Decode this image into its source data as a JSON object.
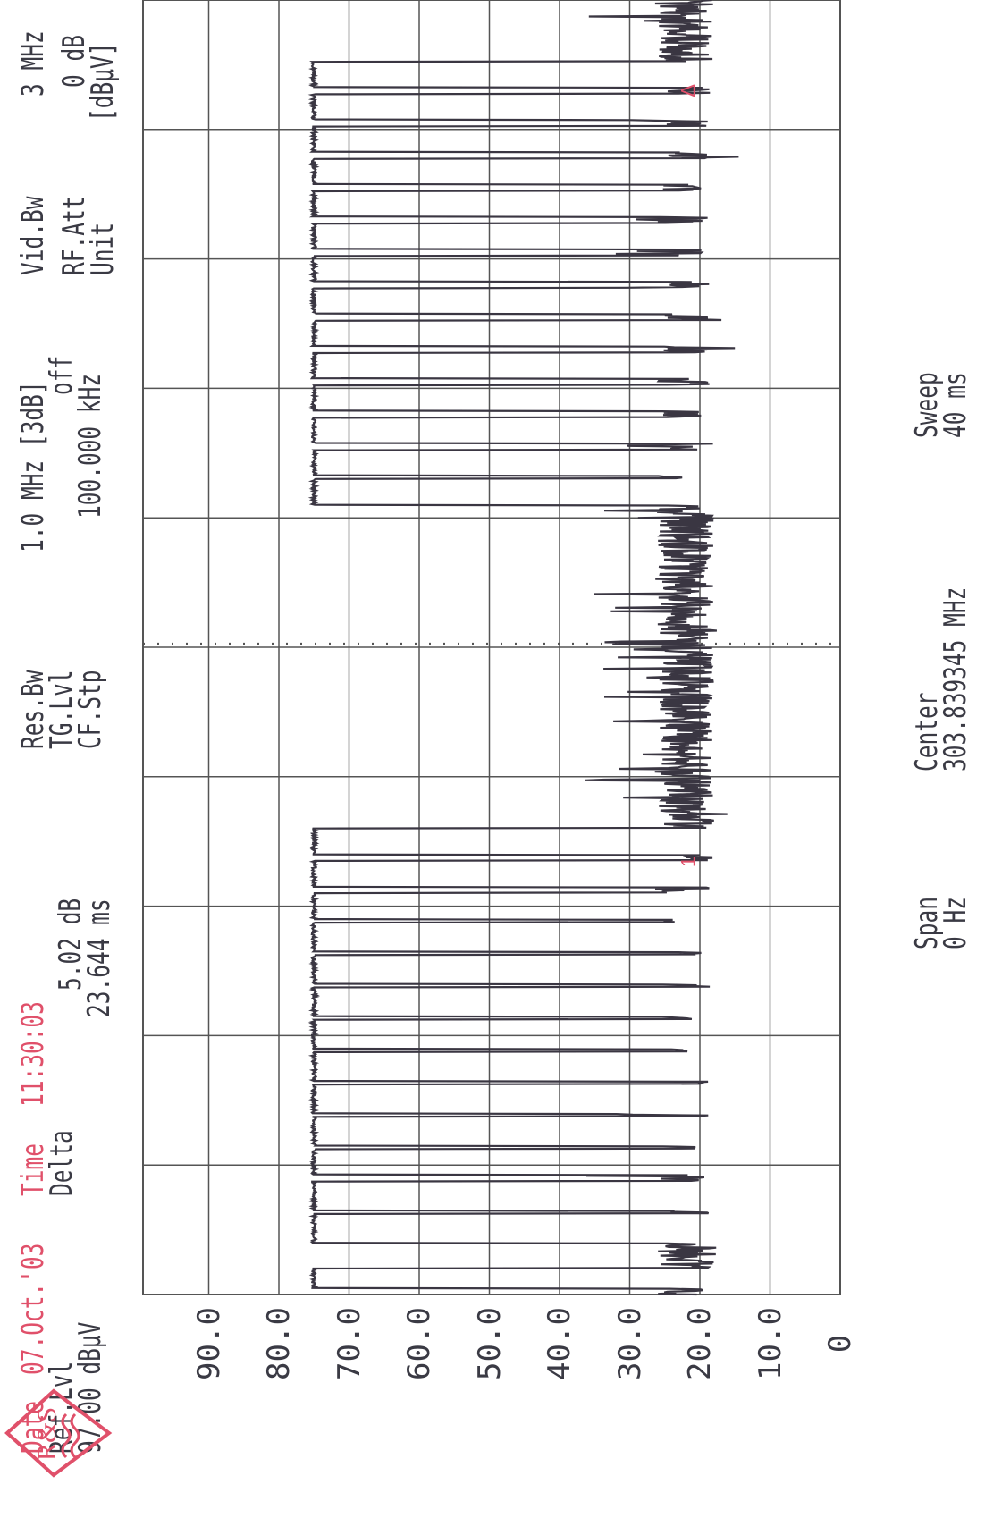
{
  "header": {
    "date_label": "Date",
    "date_value": "07.Oct.'03",
    "time_label": "Time",
    "time_value": "11:30:03",
    "ref_label": "Ref.Lvl",
    "ref_value": "97.00 dBµV",
    "delta_label": "Delta",
    "delta_db": "5.02 dB",
    "delta_ms": "23.644 ms",
    "res_bw_label": "Res.Bw",
    "res_bw_value": "1.0 MHz [3dB]",
    "tg_lvl_label": "TG.Lvl",
    "tg_lvl_value": "off",
    "cf_stp_label": "CF.Stp",
    "cf_stp_value": "100.000 kHz",
    "vid_bw_label": "Vid.Bw",
    "vid_bw_value": "3 MHz",
    "rf_att_label": "RF.Att",
    "rf_att_value": "0 dB",
    "unit_label": "Unit",
    "unit_value": "[dBµV]"
  },
  "footer": {
    "span_label": "Span",
    "span_value": "0 Hz",
    "center_label": "Center",
    "center_value": "303.839345 MHz",
    "sweep_label": "Sweep",
    "sweep_value": "40 ms"
  },
  "logo": {
    "text": "R&S",
    "color": "#e0506a"
  },
  "colors": {
    "trace": "#3a3642",
    "grid": "#555555",
    "accent": "#e0506a"
  },
  "chart_data": {
    "type": "line",
    "title": "",
    "xlabel": "",
    "ylabel": "",
    "xlim": [
      0,
      40
    ],
    "ylim": [
      0,
      97
    ],
    "y_ticks": [
      "90.0",
      "80.0",
      "70.0",
      "60.0",
      "50.0",
      "40.0",
      "30.0",
      "20.0",
      "10.0",
      "0"
    ],
    "grid": true,
    "x_unit": "ms",
    "y_unit": "dBµV",
    "noise_floor": 22,
    "pulse_high": 75,
    "pulse_trains": [
      {
        "name": "Burst 1",
        "pulses": [
          [
            0.2,
            0.8
          ],
          [
            1.6,
            2.5
          ],
          [
            2.6,
            3.5
          ],
          [
            3.7,
            4.5
          ],
          [
            4.6,
            5.5
          ],
          [
            5.6,
            6.5
          ],
          [
            6.6,
            7.5
          ],
          [
            7.6,
            8.5
          ],
          [
            8.6,
            9.5
          ],
          [
            9.6,
            10.5
          ],
          [
            10.6,
            11.5
          ],
          [
            11.6,
            12.4
          ],
          [
            12.6,
            13.4
          ],
          [
            13.6,
            14.4
          ]
        ]
      },
      {
        "name": "Burst 2",
        "pulses": [
          [
            24.4,
            25.2
          ],
          [
            25.3,
            26.1
          ],
          [
            26.3,
            27.1
          ],
          [
            27.3,
            28.1
          ],
          [
            28.3,
            29.1
          ],
          [
            29.3,
            30.1
          ],
          [
            30.3,
            31.1
          ],
          [
            31.3,
            32.1
          ],
          [
            32.3,
            33.1
          ],
          [
            33.3,
            34.1
          ],
          [
            34.3,
            35.1
          ],
          [
            35.3,
            36.1
          ],
          [
            36.3,
            37.1
          ],
          [
            37.3,
            38.1
          ]
        ]
      }
    ],
    "markers": [
      {
        "label": "1",
        "x": 13.2,
        "y": 22
      },
      {
        "label": "Δ",
        "x": 37.0,
        "y": 22
      }
    ],
    "center_line_x": 20.1
  }
}
